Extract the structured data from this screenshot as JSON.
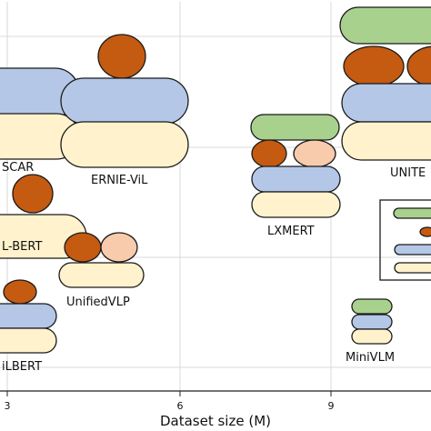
{
  "chart_data": {
    "type": "bubble",
    "xlabel": "Dataset size (M)",
    "x_ticks": [
      "3",
      "6",
      "9"
    ],
    "xlim": [
      3,
      10.9
    ],
    "grid": true,
    "colors": {
      "green": "#a9d18e",
      "orange": "#c55a11",
      "blue": "#b4c7e7",
      "peach": "#f8cbad",
      "cream": "#fff2cc"
    },
    "models": [
      {
        "name": "OSCAR",
        "label": "SCAR",
        "dataset_size": 2.9
      },
      {
        "name": "ERNIE-ViL",
        "label": "ERNIE-ViL",
        "dataset_size": 4.9
      },
      {
        "name": "VL-BERT",
        "label": "L-BERT",
        "dataset_size": 2.9
      },
      {
        "name": "UnifiedVLP",
        "label": "UnifiedVLP",
        "dataset_size": 4.3
      },
      {
        "name": "ViLBERT",
        "label": "iLBERT",
        "dataset_size": 2.9
      },
      {
        "name": "LXMERT",
        "label": "LXMERT",
        "dataset_size": 8.0
      },
      {
        "name": "UNITER",
        "label": "UNITE",
        "dataset_size": 10.4
      },
      {
        "name": "MiniVLM",
        "label": "MiniVLM",
        "dataset_size": 9.4
      }
    ]
  }
}
